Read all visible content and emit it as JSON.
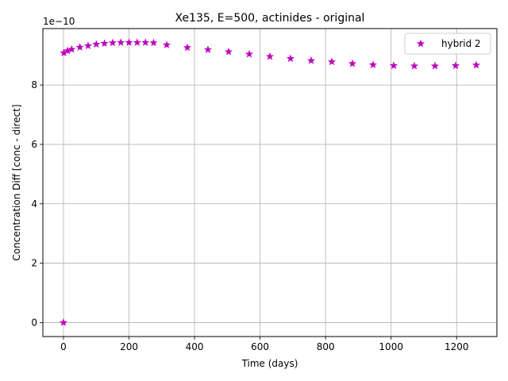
{
  "chart_data": {
    "type": "scatter",
    "title": "Xe135, E=500, actinides - original",
    "xlabel": "Time (days)",
    "ylabel": "Concentration Diff [conc - direct]",
    "y_scale_label": "1e−10",
    "y_scale_factor": 1e-10,
    "xlim": [
      -63,
      1323
    ],
    "ylim": [
      -0.47,
      9.9
    ],
    "xticks": [
      0,
      200,
      400,
      600,
      800,
      1000,
      1200
    ],
    "yticks": [
      0,
      2,
      4,
      6,
      8
    ],
    "grid": true,
    "legend_position": "top-right",
    "series": [
      {
        "name": "hybrid 2",
        "color": "#bf00bf",
        "marker": "star",
        "x": [
          0,
          1,
          12,
          25,
          50,
          75,
          100,
          125,
          150,
          175,
          200,
          225,
          250,
          275,
          315,
          378,
          441,
          504,
          567,
          630,
          693,
          756,
          819,
          882,
          945,
          1008,
          1071,
          1134,
          1197,
          1260
        ],
        "y": [
          0.0,
          9.08,
          9.15,
          9.2,
          9.27,
          9.32,
          9.37,
          9.4,
          9.42,
          9.43,
          9.43,
          9.43,
          9.43,
          9.42,
          9.35,
          9.26,
          9.19,
          9.12,
          9.04,
          8.96,
          8.89,
          8.82,
          8.78,
          8.72,
          8.68,
          8.65,
          8.64,
          8.64,
          8.65,
          8.67
        ]
      }
    ]
  }
}
